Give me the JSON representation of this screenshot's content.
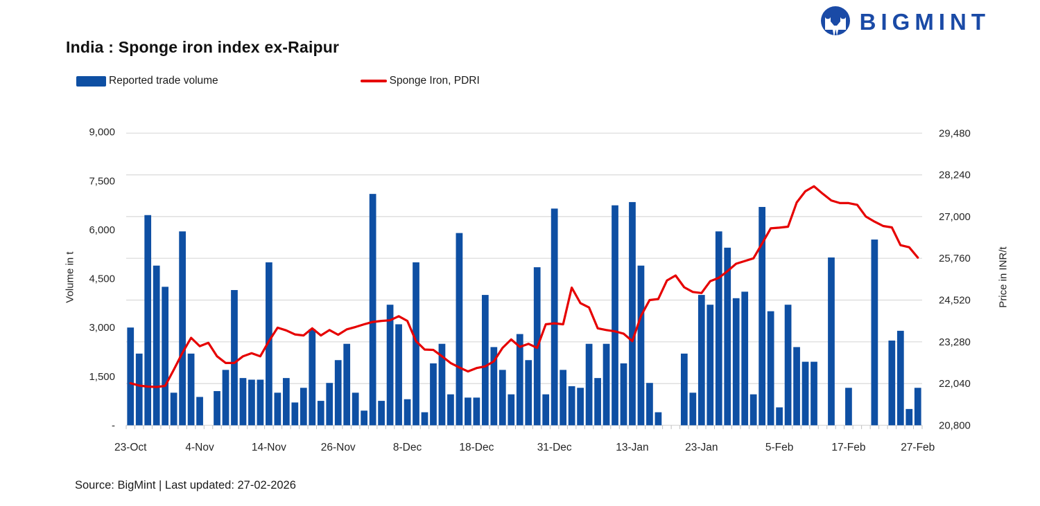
{
  "header": {
    "title": "India : Sponge iron index ex-Raipur",
    "brand": "BIGMINT"
  },
  "legend": {
    "items": [
      {
        "label": "Reported trade volume",
        "type": "bar"
      },
      {
        "label": "Sponge Iron, PDRI",
        "type": "line"
      }
    ]
  },
  "footer": {
    "source": "Source: BigMint | Last updated: 27-02-2026"
  },
  "colors": {
    "bar": "#0e4fa3",
    "line": "#e60000",
    "brand": "#1a4aa6",
    "gridline": "#d9d9d9",
    "tick": "#bfbfbf",
    "axis_text": "#262626"
  },
  "chart_data": {
    "type": "bar+line",
    "title": "India : Sponge iron index ex-Raipur",
    "n_slots": 92,
    "grid": "horizontal",
    "legend_position": "top-left",
    "x_tick_labels": [
      "23-Oct",
      "4-Nov",
      "14-Nov",
      "26-Nov",
      "8-Dec",
      "18-Dec",
      "31-Dec",
      "13-Jan",
      "23-Jan",
      "5-Feb",
      "17-Feb",
      "27-Feb"
    ],
    "x_tick_slots": [
      0,
      8,
      16,
      24,
      32,
      40,
      49,
      58,
      66,
      75,
      83,
      91
    ],
    "left_axis": {
      "title": "Volume in t",
      "tick_labels": [
        "9,000",
        "7,500",
        "6,000",
        "4,500",
        "3,000",
        "1,500",
        "-"
      ],
      "min": 0,
      "max": 9000
    },
    "right_axis": {
      "title": "Price in INR/t",
      "tick_labels": [
        "29,480",
        "28,240",
        "27,000",
        "25,760",
        "24,520",
        "23,280",
        "22,040",
        "20,800"
      ],
      "min": 20800,
      "max": 29480
    },
    "series": [
      {
        "name": "Reported trade volume",
        "type": "bar",
        "axis": "left",
        "values": [
          3000,
          2200,
          6450,
          4900,
          4250,
          1000,
          5950,
          2200,
          870,
          0,
          1050,
          1700,
          4150,
          1450,
          1400,
          1400,
          5000,
          1000,
          1450,
          700,
          1150,
          2950,
          750,
          1300,
          2000,
          2500,
          1000,
          450,
          7100,
          750,
          3700,
          3100,
          800,
          5000,
          400,
          1900,
          2500,
          950,
          5900,
          850,
          850,
          4000,
          2400,
          1700,
          950,
          2800,
          2000,
          4850,
          950,
          6650,
          1700,
          1200,
          1150,
          2500,
          1450,
          2500,
          6750,
          1900,
          6850,
          4900,
          1300,
          400,
          0,
          0,
          2200,
          1000,
          4000,
          3700,
          5950,
          5450,
          3900,
          4100,
          950,
          6700,
          3500,
          550,
          3700,
          2400,
          1950,
          1950,
          0,
          5150,
          0,
          1150,
          0,
          0,
          5700,
          0,
          2600,
          2900,
          500,
          1150
        ]
      },
      {
        "name": "Sponge Iron, PDRI",
        "type": "line",
        "axis": "right",
        "values": [
          22050,
          21980,
          21950,
          21940,
          21970,
          22450,
          22950,
          23400,
          23150,
          23250,
          22850,
          22650,
          22650,
          22850,
          22940,
          22850,
          23300,
          23700,
          23620,
          23500,
          23470,
          23680,
          23470,
          23630,
          23490,
          23650,
          23720,
          23800,
          23870,
          23900,
          23920,
          24040,
          23900,
          23300,
          23050,
          23040,
          22850,
          22650,
          22520,
          22400,
          22500,
          22550,
          22700,
          23100,
          23350,
          23130,
          23220,
          23100,
          23800,
          23830,
          23800,
          24890,
          24430,
          24300,
          23680,
          23630,
          23590,
          23520,
          23300,
          24050,
          24520,
          24550,
          25100,
          25250,
          24900,
          24760,
          24730,
          25080,
          25180,
          25380,
          25600,
          25680,
          25760,
          26200,
          26650,
          26670,
          26700,
          27420,
          27750,
          27900,
          27680,
          27480,
          27400,
          27400,
          27350,
          27000,
          26850,
          26720,
          26680,
          26150,
          26090,
          25780
        ]
      }
    ]
  }
}
